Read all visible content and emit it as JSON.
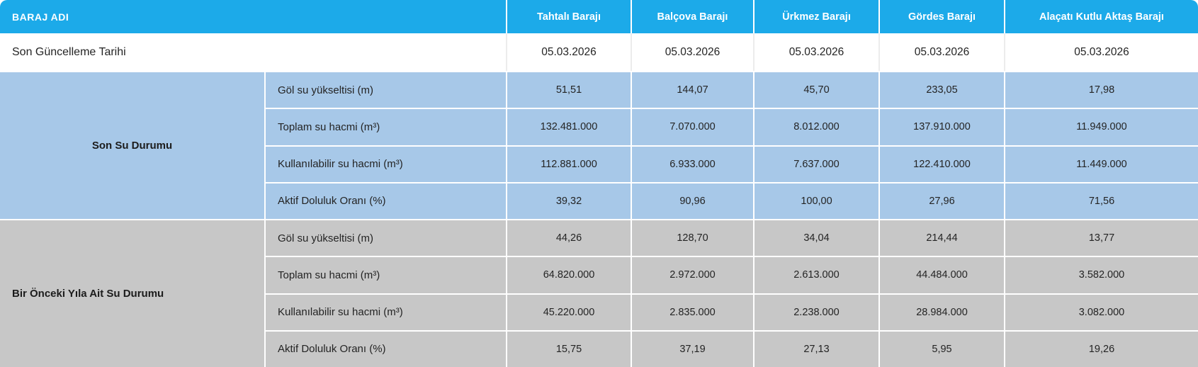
{
  "colors": {
    "header_bg": "#1caae9",
    "section1_bg": "#a7c8e8",
    "section2_bg": "#c7c7c7",
    "text_dark": "#242424",
    "header_text": "#ffffff"
  },
  "table": {
    "header": {
      "baraj_adi_label": "BARAJ ADI",
      "columns": [
        "Tahtalı Barajı",
        "Balçova Barajı",
        "Ürkmez Barajı",
        "Gördes Barajı",
        "Alaçatı Kutlu Aktaş Barajı"
      ]
    },
    "update_row": {
      "label": "Son Güncelleme Tarihi",
      "values": [
        "05.03.2026",
        "05.03.2026",
        "05.03.2026",
        "05.03.2026",
        "05.03.2026"
      ]
    },
    "sections": [
      {
        "label": "Son Su Durumu",
        "rows": [
          {
            "label": "Göl su yükseltisi (m)",
            "values": [
              "51,51",
              "144,07",
              "45,70",
              "233,05",
              "17,98"
            ]
          },
          {
            "label": "Toplam su hacmi (m³)",
            "values": [
              "132.481.000",
              "7.070.000",
              "8.012.000",
              "137.910.000",
              "11.949.000"
            ]
          },
          {
            "label": "Kullanılabilir su hacmi (m³)",
            "values": [
              "112.881.000",
              "6.933.000",
              "7.637.000",
              "122.410.000",
              "11.449.000"
            ]
          },
          {
            "label": "Aktif Doluluk Oranı (%)",
            "values": [
              "39,32",
              "90,96",
              "100,00",
              "27,96",
              "71,56"
            ]
          }
        ]
      },
      {
        "label": "Bir Önceki Yıla Ait Su Durumu",
        "rows": [
          {
            "label": "Göl su yükseltisi (m)",
            "values": [
              "44,26",
              "128,70",
              "34,04",
              "214,44",
              "13,77"
            ]
          },
          {
            "label": "Toplam su hacmi (m³)",
            "values": [
              "64.820.000",
              "2.972.000",
              "2.613.000",
              "44.484.000",
              "3.582.000"
            ]
          },
          {
            "label": "Kullanılabilir su hacmi (m³)",
            "values": [
              "45.220.000",
              "2.835.000",
              "2.238.000",
              "28.984.000",
              "3.082.000"
            ]
          },
          {
            "label": "Aktif Doluluk Oranı (%)",
            "values": [
              "15,75",
              "37,19",
              "27,13",
              "5,95",
              "19,26"
            ]
          }
        ]
      }
    ]
  }
}
